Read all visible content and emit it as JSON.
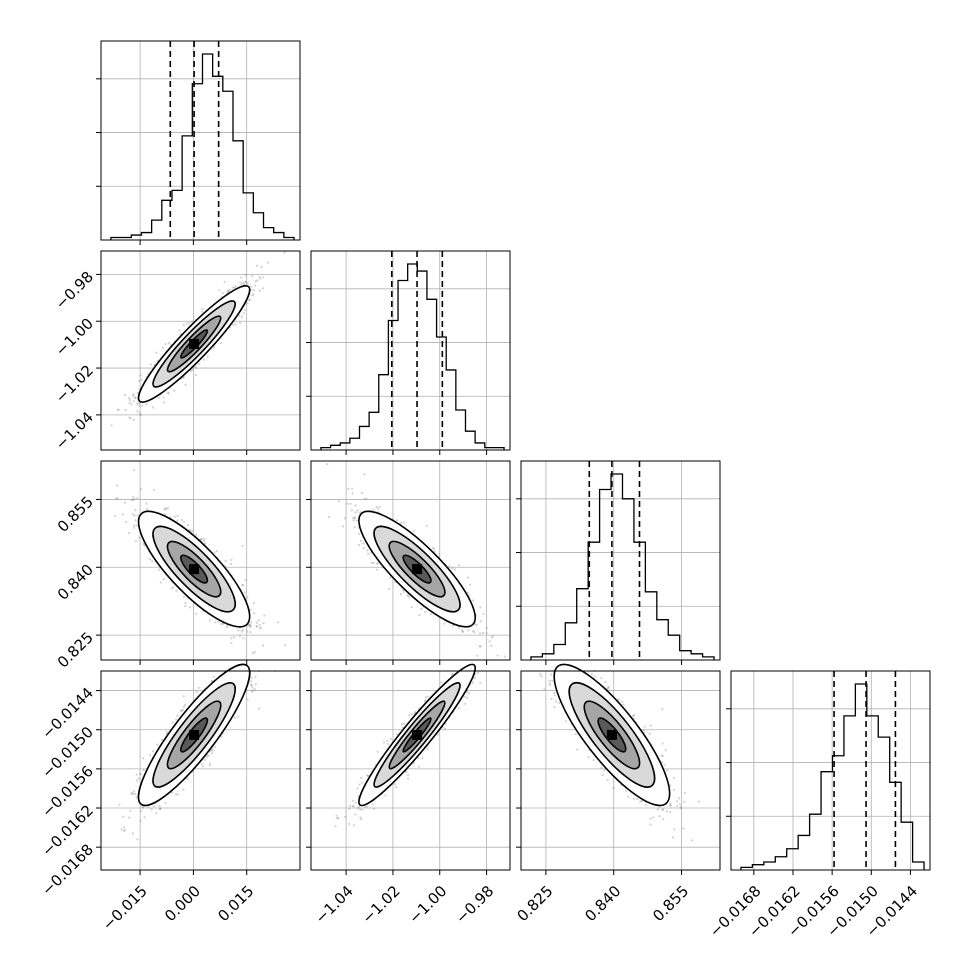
{
  "chart_data": {
    "type": "corner",
    "title": "",
    "grid": true,
    "parameters": [
      {
        "label": "",
        "range": [
          -0.026,
          0.03
        ],
        "ticks": [
          -0.015,
          0.0,
          0.015
        ],
        "tick_labels": [
          "−0.015",
          "0.000",
          "0.015"
        ],
        "quantiles": [
          -0.0065,
          0.0002,
          0.0071
        ],
        "hist_counts": [
          1,
          1,
          2,
          3,
          8,
          16,
          20,
          42,
          63,
          75,
          66,
          60,
          40,
          19,
          11,
          5,
          3,
          1
        ]
      },
      {
        "label": "",
        "range": [
          -1.055,
          -0.97
        ],
        "ticks": [
          -1.04,
          -1.02,
          -1.0,
          -0.98
        ],
        "tick_labels": [
          "−1.04",
          "−1.02",
          "−1.00",
          "−0.98"
        ],
        "quantiles": [
          -1.0205,
          -1.0097,
          -0.9989
        ],
        "hist_counts": [
          1,
          2,
          3,
          5,
          10,
          16,
          32,
          55,
          72,
          79,
          76,
          64,
          48,
          34,
          17,
          8,
          3,
          1,
          1
        ]
      },
      {
        "label": "",
        "range": [
          0.8195,
          0.8635
        ],
        "ticks": [
          0.825,
          0.84,
          0.855
        ],
        "tick_labels": [
          "0.825",
          "0.840",
          "0.855"
        ],
        "quantiles": [
          0.8346,
          0.8396,
          0.8457
        ],
        "hist_counts": [
          1,
          2,
          5,
          12,
          23,
          38,
          55,
          60,
          52,
          38,
          22,
          13,
          8,
          3,
          2,
          1
        ]
      },
      {
        "label": "",
        "range": [
          -0.01715,
          -0.0141
        ],
        "ticks": [
          -0.0168,
          -0.0162,
          -0.0156,
          -0.015,
          -0.0144
        ],
        "tick_labels": [
          "−0.0168",
          "−0.0162",
          "−0.0156",
          "−0.0150",
          "−0.0144"
        ],
        "quantiles": [
          -0.01557,
          -0.01508,
          -0.01463
        ],
        "hist_counts": [
          1,
          2,
          3,
          5,
          8,
          13,
          21,
          37,
          43,
          58,
          70,
          58,
          50,
          33,
          18,
          3
        ]
      }
    ],
    "correlations": [
      {
        "row": 1,
        "col": 0,
        "r": 0.93
      },
      {
        "row": 2,
        "col": 0,
        "r": -0.82
      },
      {
        "row": 2,
        "col": 1,
        "r": -0.84
      },
      {
        "row": 3,
        "col": 0,
        "r": 0.88
      },
      {
        "row": 3,
        "col": 1,
        "r": 0.95
      },
      {
        "row": 3,
        "col": 2,
        "r": -0.83
      }
    ],
    "contour_levels": 4,
    "scatter_color": "#7f7f7f",
    "line_color": "#000000",
    "grid_color": "#b0b0b0"
  }
}
